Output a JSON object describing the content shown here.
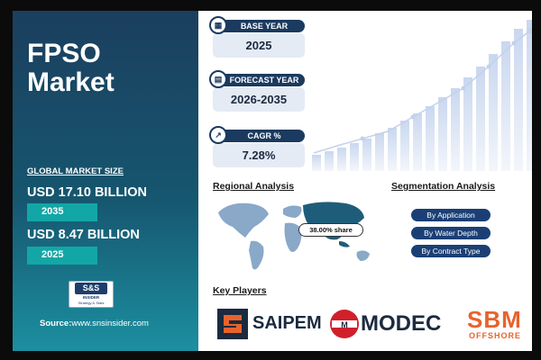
{
  "title": "FPSO Market",
  "market": {
    "label": "GLOBAL MARKET SIZE",
    "value_2035": "USD 17.10 BILLION",
    "year_2035": "2035",
    "value_2025": "USD 8.47 BILLION",
    "year_2025": "2025"
  },
  "brand_logo": {
    "line1": "S&S",
    "line2": "INSIDER",
    "line3": "Strategy & Stats"
  },
  "source": {
    "label": "Source:",
    "url": "www.snsinsider.com"
  },
  "cards": [
    {
      "label": "BASE YEAR",
      "value": "2025",
      "icon": "calendar-icon"
    },
    {
      "label": "FORECAST YEAR",
      "value": "2026-2035",
      "icon": "chart-icon"
    },
    {
      "label": "CAGR %",
      "value": "7.28%",
      "icon": "growth-icon"
    }
  ],
  "regional": {
    "title": "Regional Analysis",
    "share": "38.00% share"
  },
  "segmentation": {
    "title": "Segmentation Analysis",
    "items": [
      "By Application",
      "By Water Depth",
      "By Contract Type"
    ]
  },
  "key_players": {
    "title": "Key Players",
    "companies": [
      {
        "name": "SAIPEM"
      },
      {
        "name": "MODEC"
      },
      {
        "name": "SBM",
        "sub": "OFFSHORE"
      }
    ]
  },
  "colors": {
    "navy": "#1b3a5f",
    "teal": "#12a7a6",
    "orange": "#e8632b",
    "modec_red": "#d0202c"
  }
}
